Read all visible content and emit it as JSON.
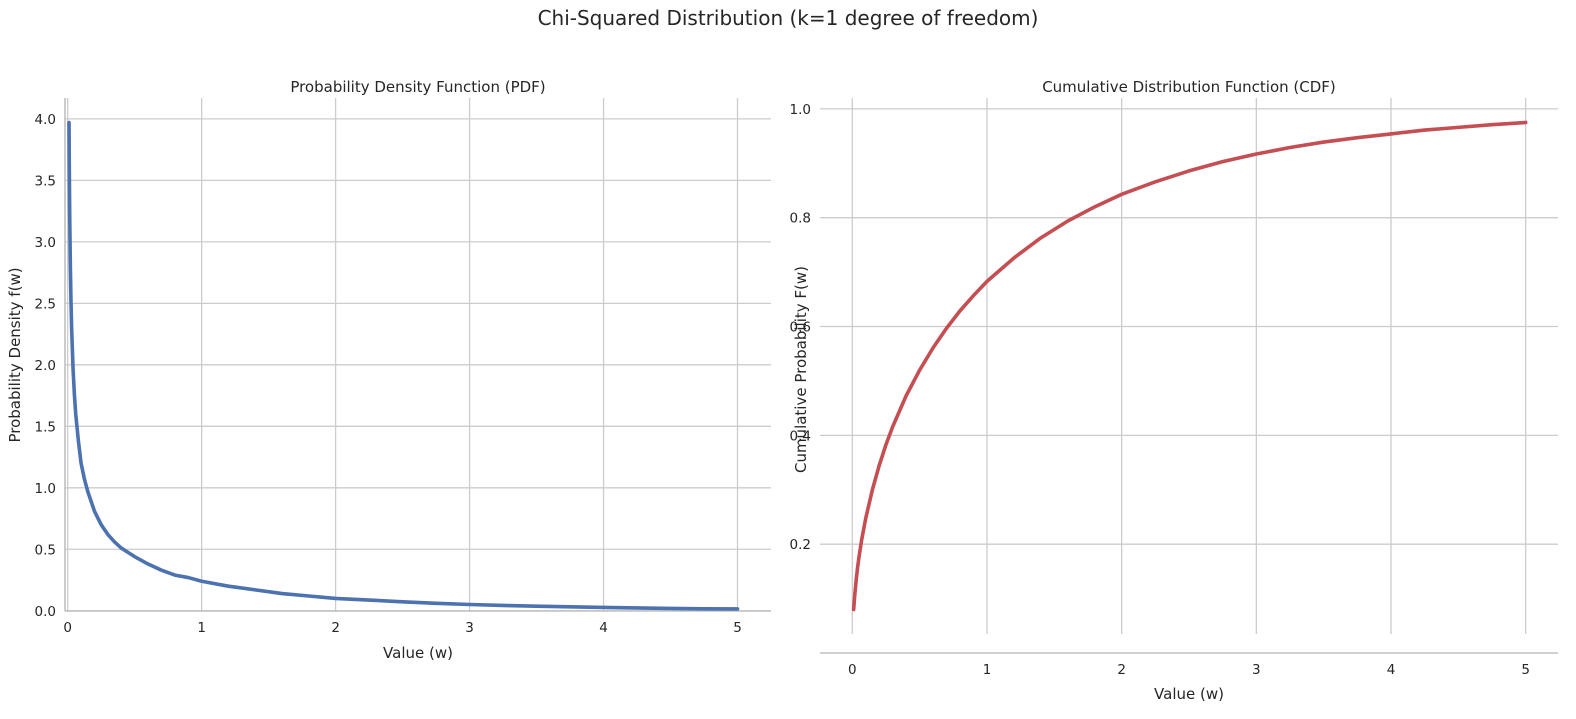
{
  "figure": {
    "title": "Chi-Squared Distribution (k=1 degree of freedom)"
  },
  "chart_data": [
    {
      "type": "line",
      "title": "Probability Density Function (PDF)",
      "xlabel": "Value (w)",
      "ylabel": "Probability Density f(w)",
      "xlim": [
        -0.02,
        5.25
      ],
      "ylim": [
        -0.01,
        4.17
      ],
      "xticks": [
        0,
        1,
        2,
        3,
        4,
        5
      ],
      "xtick_labels": [
        "0",
        "1",
        "2",
        "3",
        "4",
        "5"
      ],
      "yticks": [
        0,
        0.5,
        1,
        1.5,
        2,
        2.5,
        3,
        3.5,
        4
      ],
      "ytick_labels": [
        "0.0",
        "0.5",
        "1.0",
        "1.5",
        "2.0",
        "2.5",
        "3.0",
        "3.5",
        "4.0"
      ],
      "grid": true,
      "series": [
        {
          "color": "#4c72b0",
          "x": [
            0.01,
            0.012,
            0.015,
            0.02,
            0.025,
            0.03,
            0.04,
            0.05,
            0.06,
            0.08,
            0.1,
            0.125,
            0.15,
            0.2,
            0.25,
            0.3,
            0.35,
            0.4,
            0.5,
            0.6,
            0.7,
            0.8,
            0.9,
            1.0,
            1.2,
            1.4,
            1.6,
            1.8,
            2.0,
            2.25,
            2.5,
            2.75,
            3.0,
            3.25,
            3.5,
            3.75,
            4.0,
            4.25,
            4.5,
            4.75,
            5.0
          ],
          "y": [
            3.97,
            3.62,
            3.23,
            2.8,
            2.5,
            2.28,
            1.97,
            1.76,
            1.6,
            1.38,
            1.2,
            1.07,
            0.97,
            0.81,
            0.7,
            0.62,
            0.56,
            0.51,
            0.44,
            0.38,
            0.33,
            0.29,
            0.27,
            0.24,
            0.2,
            0.17,
            0.14,
            0.12,
            0.1,
            0.087,
            0.073,
            0.061,
            0.051,
            0.043,
            0.037,
            0.032,
            0.027,
            0.023,
            0.019,
            0.016,
            0.015
          ]
        }
      ]
    },
    {
      "type": "line",
      "title": "Cumulative Distribution Function (CDF)",
      "xlabel": "Value (w)",
      "ylabel": "Cumulative Probability F(w)",
      "xlim": [
        -0.24,
        5.24
      ],
      "ylim": [
        0.0,
        1.02
      ],
      "xticks": [
        0,
        1,
        2,
        3,
        4,
        5
      ],
      "xtick_labels": [
        "0",
        "1",
        "2",
        "3",
        "4",
        "5"
      ],
      "yticks": [
        0.2,
        0.4,
        0.6,
        0.8,
        1.0
      ],
      "ytick_labels": [
        "0.2",
        "0.4",
        "0.6",
        "0.8",
        "1.0"
      ],
      "grid": true,
      "series": [
        {
          "color": "#c44e52",
          "x": [
            0.01,
            0.015,
            0.02,
            0.03,
            0.04,
            0.05,
            0.07,
            0.1,
            0.15,
            0.2,
            0.25,
            0.3,
            0.4,
            0.5,
            0.6,
            0.7,
            0.8,
            0.9,
            1.0,
            1.2,
            1.4,
            1.6,
            1.8,
            2.0,
            2.25,
            2.5,
            2.75,
            3.0,
            3.25,
            3.5,
            3.75,
            4.0,
            4.25,
            4.5,
            4.75,
            5.0
          ],
          "y": [
            0.08,
            0.097,
            0.112,
            0.137,
            0.159,
            0.177,
            0.209,
            0.248,
            0.301,
            0.345,
            0.383,
            0.416,
            0.473,
            0.52,
            0.561,
            0.597,
            0.629,
            0.657,
            0.683,
            0.726,
            0.763,
            0.794,
            0.82,
            0.843,
            0.866,
            0.886,
            0.903,
            0.917,
            0.929,
            0.939,
            0.947,
            0.954,
            0.961,
            0.966,
            0.971,
            0.975
          ]
        }
      ]
    }
  ]
}
